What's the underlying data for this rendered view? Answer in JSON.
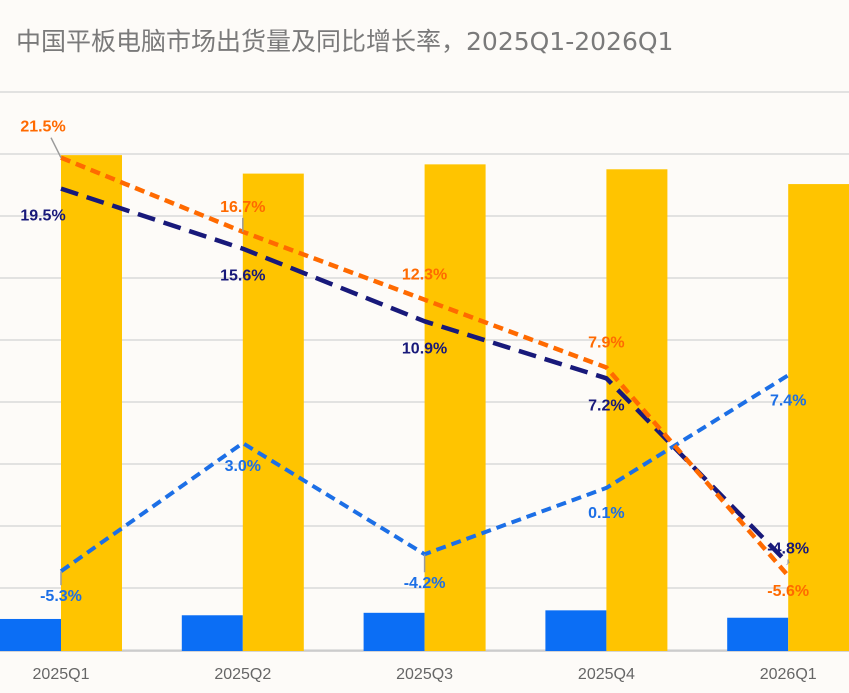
{
  "page": {
    "title": "中国平板电脑市场出货量及同比增长率，2025Q1-2026Q1"
  },
  "colors": {
    "bar_small": "#0b6ef5",
    "bar_large": "#ffc400",
    "line_orange": "#ff6a00",
    "line_navy": "#18197a",
    "line_blue": "#1c6fe6",
    "grid": "#d9d9d9",
    "axis_text": "#666666",
    "leader": "#9a9a9a"
  },
  "chart_data": {
    "type": "bar",
    "categories": [
      "2025Q1",
      "2025Q2",
      "2025Q3",
      "2025Q4",
      "2026Q1"
    ],
    "bars": [
      {
        "color_key": "bar_small",
        "values": [
          0.52,
          0.58,
          0.62,
          0.66,
          0.54
        ]
      },
      {
        "color_key": "bar_large",
        "values": [
          8.05,
          7.75,
          7.9,
          7.82,
          7.58
        ]
      }
    ],
    "bar_ylim": [
      0,
      10
    ],
    "lines": [
      {
        "color_key": "line_orange",
        "values": [
          21.5,
          16.7,
          12.3,
          7.9,
          -5.6
        ],
        "labels": [
          "21.5%",
          "16.7%",
          "12.3%",
          "7.9%",
          "-5.6%"
        ]
      },
      {
        "color_key": "line_navy",
        "values": [
          19.5,
          15.6,
          10.9,
          7.2,
          -4.8
        ],
        "labels": [
          "19.5%",
          "15.6%",
          "10.9%",
          "7.2%",
          "-4.8%"
        ]
      },
      {
        "color_key": "line_blue",
        "values": [
          -5.3,
          3.0,
          -4.2,
          0.1,
          7.4
        ],
        "labels": [
          "-5.3%",
          "3.0%",
          "-4.2%",
          "0.1%",
          "7.4%"
        ]
      }
    ],
    "line_ylim": [
      -6,
      22
    ],
    "grid": true
  }
}
